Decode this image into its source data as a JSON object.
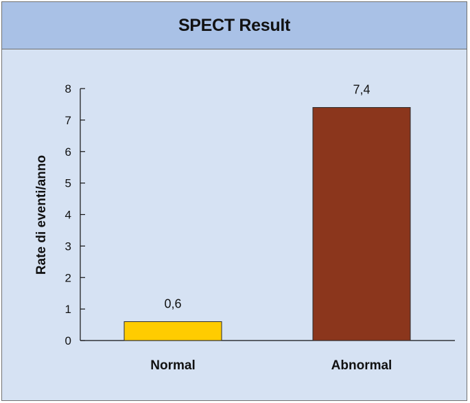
{
  "chart_data": {
    "type": "bar",
    "title": "SPECT Result",
    "xlabel": "",
    "ylabel": "Rate di eventi/anno",
    "ylim": [
      0,
      8
    ],
    "yticks": [
      0,
      1,
      2,
      3,
      4,
      5,
      6,
      7,
      8
    ],
    "categories": [
      "Normal",
      "Abnormal"
    ],
    "values": [
      0.6,
      7.4
    ],
    "data_labels": [
      "0,6",
      "7,4"
    ],
    "colors": [
      "#ffcc00",
      "#8b361c"
    ],
    "grid": false,
    "legend": "none"
  }
}
